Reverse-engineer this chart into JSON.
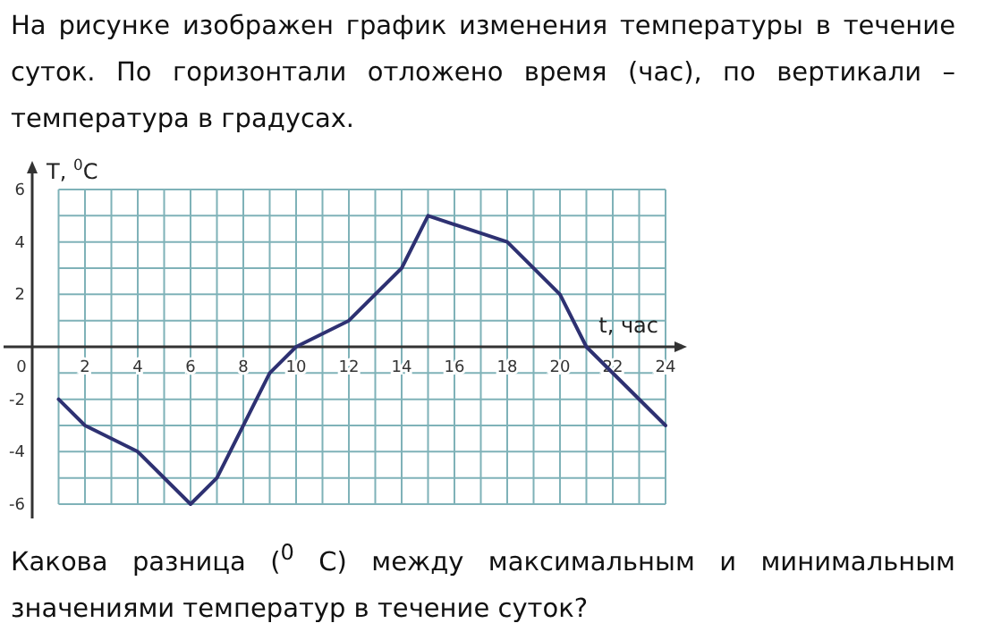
{
  "chart_data": {
    "type": "line",
    "title": "На рисунке изображен график изменения температуры в течение суток. По горизонтали отложено время (час), по вертикали – температура в градусах.",
    "xlabel": "t, час",
    "ylabel": "T, $^{0}$C",
    "annotations": [
      "Какова разница ($^{0}$ С)  между максимальным и минимальным значениями температур в течение суток?"
    ],
    "x": [
      1,
      2,
      4,
      6,
      7,
      9,
      10,
      12,
      14,
      15,
      18,
      20,
      21,
      24
    ],
    "series": [
      {
        "color": "#2e3172",
        "values": [
          -2,
          -3,
          -4,
          -6,
          -5,
          -1,
          0,
          1,
          3,
          5,
          4,
          2,
          0,
          -3
        ]
      }
    ],
    "xlim": [
      0,
      24
    ],
    "xticks": [
      0,
      {
        "value": 1,
        "label": null
      },
      2,
      {
        "value": 3,
        "label": null
      },
      4,
      {
        "value": 5,
        "label": null
      },
      6,
      {
        "value": 7,
        "label": null
      },
      8,
      {
        "value": 9,
        "label": null
      },
      10,
      {
        "value": 11,
        "label": null
      },
      12,
      {
        "value": 13,
        "label": null
      },
      14,
      {
        "value": 15,
        "label": null
      },
      16,
      {
        "value": 17,
        "label": null
      },
      18,
      {
        "value": 19,
        "label": null
      },
      20,
      {
        "value": 21,
        "label": null
      },
      22,
      {
        "value": 23,
        "label": null
      },
      24
    ],
    "ylim": [
      -6,
      6
    ],
    "yticks": [
      -6,
      {
        "value": -5,
        "label": null
      },
      -4,
      {
        "value": -3,
        "label": null
      },
      -2,
      {
        "value": -1,
        "label": null
      },
      {
        "value": 0,
        "label": null
      },
      {
        "value": 1,
        "label": null
      },
      2,
      {
        "value": 3,
        "label": null
      },
      4,
      {
        "value": 5,
        "label": null
      },
      6
    ],
    "grid": true,
    "marker": "none",
    "line_style": "solid"
  }
}
